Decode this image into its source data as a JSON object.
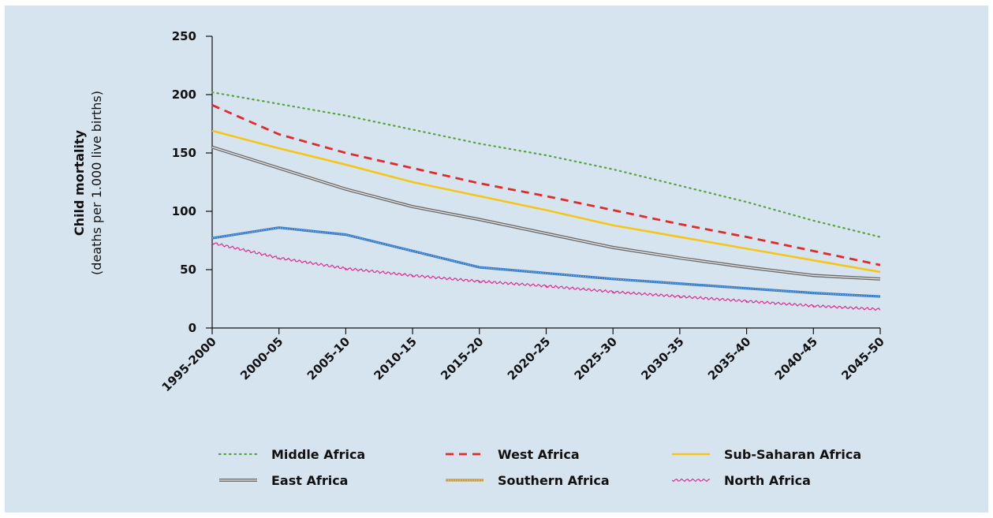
{
  "chart_data": {
    "type": "line",
    "ylabel": "Child mortality",
    "ylabel_sub": "(deaths per 1.000 live births)",
    "categories": [
      "1995-2000",
      "2000-05",
      "2005-10",
      "2010-15",
      "2015-20",
      "2020-25",
      "2025-30",
      "2030-35",
      "2035-40",
      "2040-45",
      "2045-50"
    ],
    "yticks": [
      0,
      50,
      100,
      150,
      200,
      250
    ],
    "ylim": [
      0,
      250
    ],
    "grid": false,
    "legend_position": "bottom",
    "series": [
      {
        "name": "Middle Africa",
        "style": "dotted",
        "color": "#5aa33c",
        "values": [
          202,
          192,
          182,
          170,
          158,
          148,
          136,
          122,
          108,
          92,
          78
        ]
      },
      {
        "name": "West Africa",
        "style": "dashed",
        "color": "#e02b2b",
        "values": [
          191,
          166,
          150,
          137,
          124,
          113,
          101,
          89,
          78,
          66,
          54
        ]
      },
      {
        "name": "Sub-Saharan Africa",
        "style": "solid",
        "color": "#f5c518",
        "values": [
          169,
          154,
          140,
          125,
          113,
          101,
          88,
          78,
          68,
          58,
          48
        ]
      },
      {
        "name": "East Africa",
        "style": "double",
        "color": "#6b6b6b",
        "values": [
          155,
          137,
          119,
          104,
          93,
          81,
          69,
          60,
          52,
          45,
          42
        ]
      },
      {
        "name": "Southern Africa",
        "style": "dotted-band",
        "color": "#c99a3a",
        "values": [
          77,
          86,
          80,
          66,
          52,
          47,
          42,
          38,
          34,
          30,
          27
        ]
      },
      {
        "name": "North Africa",
        "style": "wavy",
        "color": "#e0208a",
        "values": [
          73,
          60,
          51,
          45,
          40,
          36,
          31,
          27,
          23,
          19,
          16
        ]
      }
    ],
    "series_color_southern_display": "#3a7dc4"
  }
}
